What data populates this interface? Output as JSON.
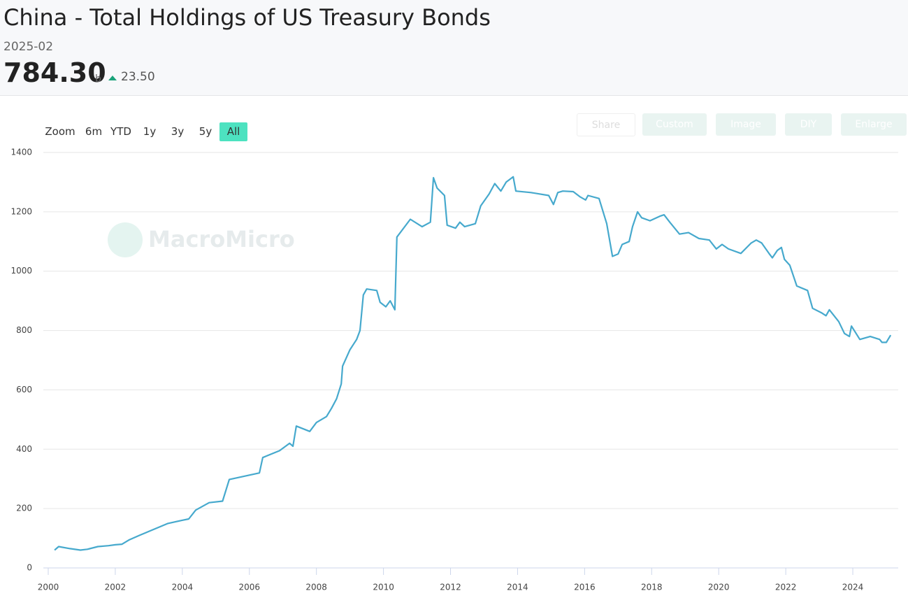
{
  "header": {
    "title": "China - Total Holdings of US Treasury Bonds",
    "date": "2025-02",
    "value": "784.30",
    "unit": "b",
    "change": "23.50"
  },
  "toolbar": {
    "zoom_label": "Zoom",
    "ranges": [
      "6m",
      "YTD",
      "1y",
      "3y",
      "5y",
      "All"
    ],
    "actions": [
      "Share",
      "Custom",
      "Image",
      "DIY",
      "Enlarge"
    ]
  },
  "watermark": "MacroMicro",
  "chart_data": {
    "type": "line",
    "color": "#46a9cd",
    "grid": true,
    "xlim": [
      2000,
      2025.35
    ],
    "ylim": [
      0,
      1400
    ],
    "xticks": [
      2000,
      2002,
      2004,
      2006,
      2008,
      2010,
      2012,
      2014,
      2016,
      2018,
      2020,
      2022,
      2024
    ],
    "yticks": [
      0,
      200,
      400,
      600,
      800,
      1000,
      1200,
      1400
    ],
    "x": [
      2000.19,
      2000.31,
      2000.65,
      2000.96,
      2001.17,
      2001.48,
      2001.8,
      2002.0,
      2002.2,
      2002.42,
      2002.73,
      2003.04,
      2003.36,
      2003.57,
      2003.98,
      2004.19,
      2004.4,
      2004.8,
      2005.2,
      2005.4,
      2006.3,
      2006.4,
      2006.9,
      2007.2,
      2007.3,
      2007.4,
      2007.8,
      2008.0,
      2008.3,
      2008.45,
      2008.6,
      2008.74,
      2008.78,
      2009.0,
      2009.2,
      2009.3,
      2009.4,
      2009.5,
      2009.8,
      2009.9,
      2010.07,
      2010.2,
      2010.34,
      2010.4,
      2010.8,
      2011.15,
      2011.4,
      2011.49,
      2011.6,
      2011.82,
      2011.9,
      2012.15,
      2012.28,
      2012.42,
      2012.74,
      2012.9,
      2013.15,
      2013.32,
      2013.5,
      2013.66,
      2013.87,
      2013.95,
      2014.4,
      2014.93,
      2015.07,
      2015.2,
      2015.35,
      2015.66,
      2015.87,
      2016.03,
      2016.1,
      2016.43,
      2016.66,
      2016.83,
      2017.0,
      2017.12,
      2017.33,
      2017.43,
      2017.58,
      2017.7,
      2017.95,
      2018.24,
      2018.37,
      2018.54,
      2018.83,
      2019.1,
      2019.41,
      2019.72,
      2019.93,
      2020.1,
      2020.29,
      2020.66,
      2020.97,
      2021.12,
      2021.28,
      2021.5,
      2021.6,
      2021.75,
      2021.87,
      2021.96,
      2022.12,
      2022.33,
      2022.65,
      2022.8,
      2023.06,
      2023.2,
      2023.3,
      2023.58,
      2023.75,
      2023.9,
      2023.96,
      2024.21,
      2024.52,
      2024.8,
      2024.87,
      2025.0,
      2025.13
    ],
    "series": [
      {
        "name": "China - Total Holdings of US Treasury Bonds",
        "color": "#46a9cd",
        "values": [
          60,
          72,
          65,
          60,
          63,
          72,
          75,
          78,
          80,
          95,
          110,
          125,
          140,
          150,
          160,
          165,
          195,
          220,
          225,
          298,
          320,
          372,
          395,
          420,
          410,
          478,
          460,
          490,
          510,
          538,
          570,
          620,
          680,
          735,
          770,
          800,
          920,
          940,
          935,
          895,
          880,
          900,
          870,
          1115,
          1175,
          1150,
          1165,
          1315,
          1280,
          1255,
          1155,
          1145,
          1165,
          1150,
          1160,
          1220,
          1260,
          1295,
          1270,
          1300,
          1318,
          1270,
          1265,
          1255,
          1225,
          1265,
          1270,
          1268,
          1250,
          1240,
          1255,
          1245,
          1160,
          1050,
          1058,
          1090,
          1100,
          1150,
          1200,
          1180,
          1170,
          1185,
          1190,
          1165,
          1125,
          1130,
          1110,
          1105,
          1075,
          1090,
          1075,
          1060,
          1095,
          1105,
          1095,
          1060,
          1045,
          1070,
          1080,
          1040,
          1020,
          950,
          935,
          875,
          860,
          850,
          870,
          830,
          790,
          780,
          815,
          770,
          780,
          770,
          760,
          760,
          784.3
        ]
      }
    ]
  }
}
